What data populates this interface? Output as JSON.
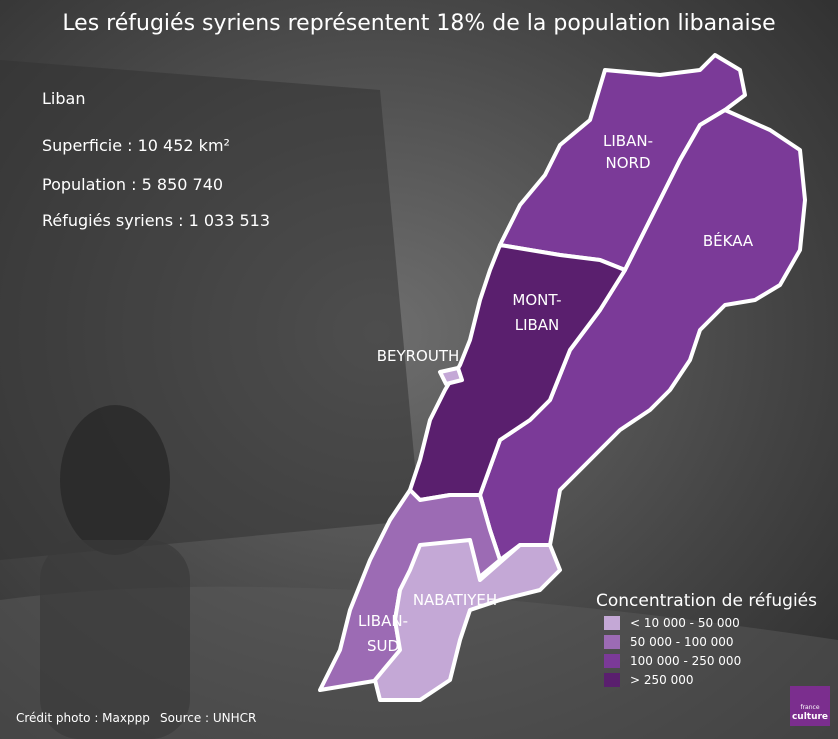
{
  "title": "Les réfugiés syriens représentent 18% de la population libanaise",
  "info": {
    "country": "Liban",
    "lines": [
      "Superficie : 10 452 km²",
      "Population : 5 850 740",
      "Réfugiés syriens : 1 033 513"
    ]
  },
  "regions": [
    {
      "label": [
        "LIBAN-",
        "NORD"
      ],
      "color": "#7b3a98"
    },
    {
      "label": [
        "BÉKAA"
      ],
      "color": "#7b3a98"
    },
    {
      "label": [
        "MONT-",
        "LIBAN"
      ],
      "color": "#5a1f6e"
    },
    {
      "label": [
        "LIBAN-",
        "SUD"
      ],
      "color": "#9c6bb4"
    },
    {
      "label": [
        "NABATIYEH"
      ],
      "color": "#c4a8d6"
    },
    {
      "label": [
        "BEYROUTH"
      ],
      "color": "#c4a8d6"
    }
  ],
  "legend": {
    "title": "Concentration de réfugiés",
    "items": [
      {
        "label": "< 10 000 - 50 000",
        "color": "#c4a8d6"
      },
      {
        "label": "50 000 - 100 000",
        "color": "#9c6bb4"
      },
      {
        "label": "100 000 - 250 000",
        "color": "#7b3a98"
      },
      {
        "label": "> 250 000",
        "color": "#5a1f6e"
      }
    ]
  },
  "credits": [
    "Crédit photo : Maxppp",
    "Source : UNHCR"
  ],
  "logo": [
    "france",
    "culture"
  ]
}
